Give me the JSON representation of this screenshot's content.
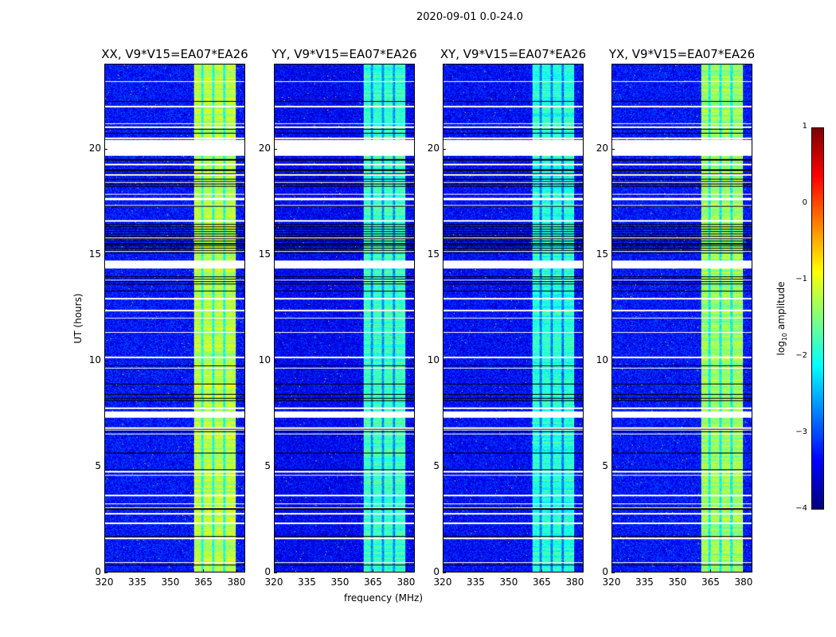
{
  "chart_data": {
    "type": "heatmap",
    "title": "2020-09-01 0.0-24.0",
    "xlabel": "frequency (MHz)",
    "ylabel": "UT (hours)",
    "xlim": [
      320,
      384
    ],
    "ylim": [
      0,
      24
    ],
    "xticks": [
      320,
      335,
      350,
      365,
      380
    ],
    "yticks": [
      0,
      5,
      10,
      15,
      20
    ],
    "panels": [
      {
        "title": "XX, V9*V15=EA07*EA26",
        "band_level": -1.2,
        "background_level": -3.3
      },
      {
        "title": "YY, V9*V15=EA07*EA26",
        "band_level": -1.85,
        "background_level": -3.4
      },
      {
        "title": "XY, V9*V15=EA07*EA26",
        "band_level": -1.95,
        "background_level": -3.35
      },
      {
        "title": "YX, V9*V15=EA07*EA26",
        "band_level": -1.35,
        "background_level": -3.3
      }
    ],
    "rfi_band_mhz": [
      360.5,
      380
    ],
    "flagged_white_hours": [
      [
        19.7,
        20.45
      ],
      [
        14.45,
        14.75
      ],
      [
        7.3,
        7.6
      ]
    ],
    "flagged_black_hours": [
      [
        20.85,
        21.0
      ],
      [
        18.2,
        18.7
      ],
      [
        15.0,
        16.5
      ],
      [
        13.6,
        14.0
      ],
      [
        8.85,
        8.95
      ],
      [
        8.05,
        8.15
      ],
      [
        6.55,
        6.85
      ],
      [
        5.55,
        5.65
      ],
      [
        4.75,
        4.85
      ],
      [
        1.65,
        1.75
      ],
      [
        0.25,
        0.35
      ]
    ],
    "colorbar": {
      "label": "log10 amplitude",
      "range": [
        -4,
        1
      ],
      "ticks": [
        1,
        0,
        -1,
        -2,
        -3,
        -4
      ],
      "colormap": "jet"
    }
  }
}
